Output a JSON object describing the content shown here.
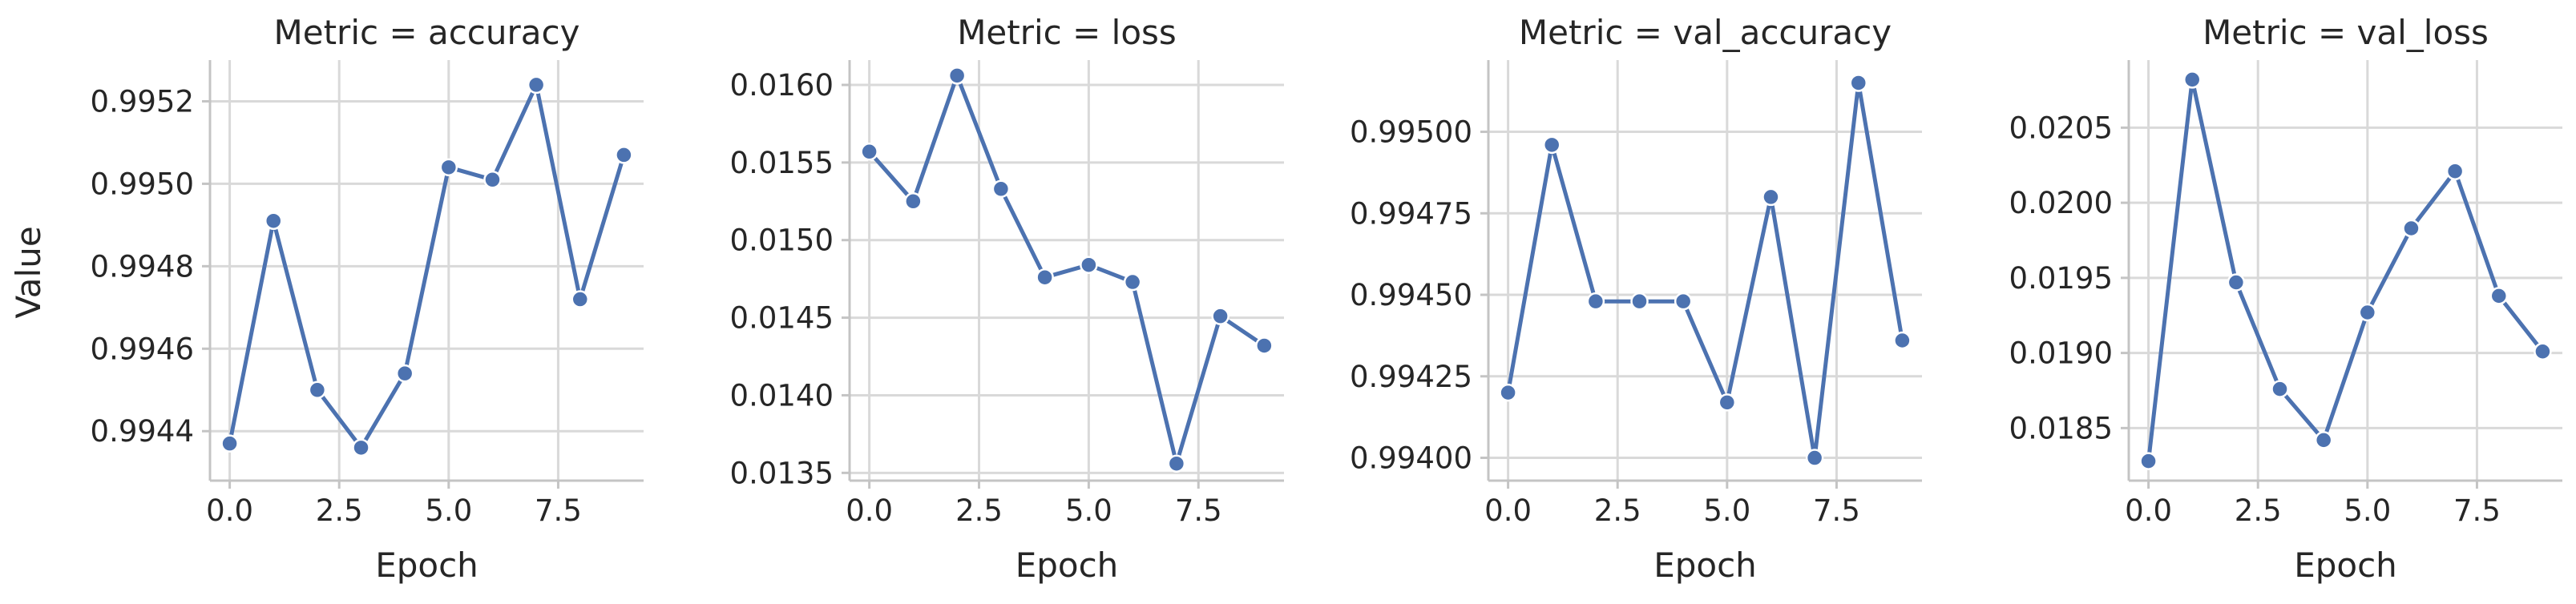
{
  "y_label_text": "Value",
  "chart_data": [
    {
      "type": "line",
      "title": "Metric = accuracy",
      "xlabel": "Epoch",
      "ylabel": "Value",
      "x": [
        0,
        1,
        2,
        3,
        4,
        5,
        6,
        7,
        8,
        9
      ],
      "values": [
        0.99437,
        0.99491,
        0.9945,
        0.99436,
        0.99454,
        0.99504,
        0.99501,
        0.99524,
        0.99472,
        0.99507
      ],
      "xlim": [
        -0.45,
        9.45
      ],
      "ylim": [
        0.99428,
        0.9953
      ],
      "xticks": [
        0,
        2.5,
        5,
        7.5
      ],
      "xtick_labels": [
        "0.0",
        "2.5",
        "5.0",
        "7.5"
      ],
      "yticks": [
        0.9944,
        0.9946,
        0.9948,
        0.995,
        0.9952
      ],
      "ytick_labels": [
        "0.9944",
        "0.9946",
        "0.9948",
        "0.9950",
        "0.9952"
      ],
      "grid": true,
      "color": "#4c72b0"
    },
    {
      "type": "line",
      "title": "Metric = loss",
      "xlabel": "Epoch",
      "ylabel": "",
      "x": [
        0,
        1,
        2,
        3,
        4,
        5,
        6,
        7,
        8,
        9
      ],
      "values": [
        0.01557,
        0.01525,
        0.01606,
        0.01533,
        0.01476,
        0.01484,
        0.01473,
        0.01356,
        0.01451,
        0.01432
      ],
      "xlim": [
        -0.45,
        9.45
      ],
      "ylim": [
        0.01345,
        0.01616
      ],
      "xticks": [
        0,
        2.5,
        5,
        7.5
      ],
      "xtick_labels": [
        "0.0",
        "2.5",
        "5.0",
        "7.5"
      ],
      "yticks": [
        0.0135,
        0.014,
        0.0145,
        0.015,
        0.0155,
        0.016
      ],
      "ytick_labels": [
        "0.0135",
        "0.0140",
        "0.0145",
        "0.0150",
        "0.0155",
        "0.0160"
      ],
      "grid": true,
      "color": "#4c72b0"
    },
    {
      "type": "line",
      "title": "Metric = val_accuracy",
      "xlabel": "Epoch",
      "ylabel": "",
      "x": [
        0,
        1,
        2,
        3,
        4,
        5,
        6,
        7,
        8,
        9
      ],
      "values": [
        0.9942,
        0.99496,
        0.99448,
        0.99448,
        0.99448,
        0.99417,
        0.9948,
        0.994,
        0.99515,
        0.99436
      ],
      "xlim": [
        -0.45,
        9.45
      ],
      "ylim": [
        0.99393,
        0.99522
      ],
      "xticks": [
        0,
        2.5,
        5,
        7.5
      ],
      "xtick_labels": [
        "0.0",
        "2.5",
        "5.0",
        "7.5"
      ],
      "yticks": [
        0.994,
        0.99425,
        0.9945,
        0.99475,
        0.995
      ],
      "ytick_labels": [
        "0.99400",
        "0.99425",
        "0.99450",
        "0.99475",
        "0.99500"
      ],
      "grid": true,
      "color": "#4c72b0"
    },
    {
      "type": "line",
      "title": "Metric = val_loss",
      "xlabel": "Epoch",
      "ylabel": "",
      "x": [
        0,
        1,
        2,
        3,
        4,
        5,
        6,
        7,
        8,
        9
      ],
      "values": [
        0.01828,
        0.02082,
        0.01947,
        0.01876,
        0.01842,
        0.01927,
        0.01983,
        0.02021,
        0.01938,
        0.01901
      ],
      "xlim": [
        -0.45,
        9.45
      ],
      "ylim": [
        0.01815,
        0.02095
      ],
      "xticks": [
        0,
        2.5,
        5,
        7.5
      ],
      "xtick_labels": [
        "0.0",
        "2.5",
        "5.0",
        "7.5"
      ],
      "yticks": [
        0.0185,
        0.019,
        0.0195,
        0.02,
        0.0205
      ],
      "ytick_labels": [
        "0.0185",
        "0.0190",
        "0.0195",
        "0.0200",
        "0.0205"
      ],
      "grid": true,
      "color": "#4c72b0"
    }
  ]
}
